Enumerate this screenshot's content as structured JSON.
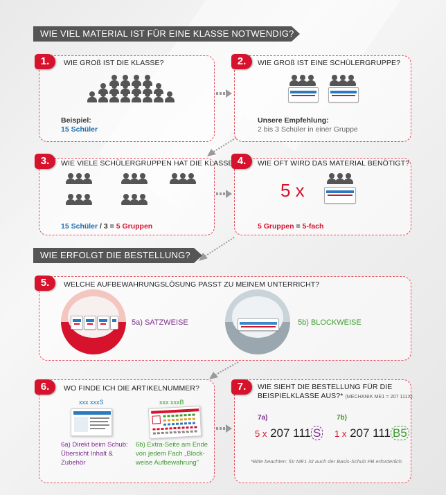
{
  "section1": "WIE VIEL MATERIAL IST FÜR EINE KLASSE NOTWENDIG?",
  "section2": "WIE ERFOLGT DIE BESTELLUNG?",
  "step1": {
    "num": "1.",
    "title": "WIE GROß IST DIE KLASSE?",
    "example_label": "Beispiel:",
    "example_value": "15 Schüler"
  },
  "step2": {
    "num": "2.",
    "title": "WIE GROß IST EINE SCHÜLERGRUPPE?",
    "rec_label": "Unsere Empfehlung:",
    "rec_value": "2 bis 3 Schüler in einer Gruppe"
  },
  "step3": {
    "num": "3.",
    "title": "WIE VIELE SCHÜLERGRUPPEN HAT DIE KLASSE?",
    "calc_a": "15 Schüler",
    "calc_sep": " / 3 = ",
    "calc_b": "5 Gruppen"
  },
  "step4": {
    "num": "4.",
    "title": "WIE OFT WIRD DAS MATERIAL BENÖTIGT?",
    "multiplier": "5 x",
    "calc_a": "5 Gruppen",
    "calc_sep": " = ",
    "calc_b": "5-fach"
  },
  "step5": {
    "num": "5.",
    "title": "WELCHE AUFBEWAHRUNGSLÖSUNG PASST ZU MEINEM UNTERRICHT?",
    "opt_a": "5a) SATZWEISE",
    "opt_b": "5b) BLOCKWEISE"
  },
  "step6": {
    "num": "6.",
    "title": "WO FINDE ICH DIE ARTIKELNUMMER?",
    "label_a": "xxx xxxS",
    "label_b": "xxx xxxB",
    "desc_a_1": "6a) Direkt beim Schub:",
    "desc_a_2": "Übersicht Inhalt &",
    "desc_a_3": "Zubehör",
    "desc_b_1": "6b) Extra-Seite am Ende",
    "desc_b_2": "von jedem Fach „Block-",
    "desc_b_3": "weise Aufbewahrung\""
  },
  "step7": {
    "num": "7.",
    "title_1": "WIE SIEHT DIE BESTELLUNG FÜR DIE",
    "title_2": "BEISPIELKLASSE AUS?*",
    "title_note": "(MECHANIK ME1 = 207 111X)",
    "a_label": "7a)",
    "a_qty": "5 x",
    "a_num": "207 111",
    "a_suffix": "S",
    "b_label": "7b)",
    "b_qty": "1 x",
    "b_num": "207 111",
    "b_suffix": "B5",
    "footnote": "*Bitte beachten: für ME1 ist auch der Basis-Schub PB erforderlich."
  }
}
